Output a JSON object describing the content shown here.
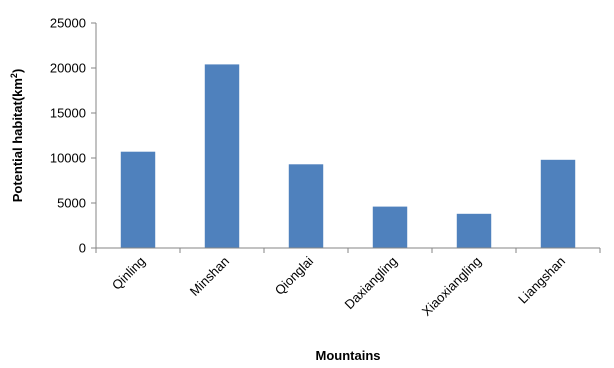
{
  "chart_data": {
    "type": "bar",
    "title": "",
    "xlabel": "Mountains",
    "ylabel_main": "Potential habitat(km",
    "ylabel_sup": "2",
    "ylabel_close": ")",
    "categories": [
      "Qinling",
      "Minshan",
      "Qionglai",
      "Daxiangling",
      "Xiaoxiangling",
      "Liangshan"
    ],
    "series": [
      {
        "values": [
          10700,
          20400,
          9300,
          4600,
          3800,
          9800
        ]
      }
    ],
    "ylim": [
      0,
      25000
    ],
    "yticks": [
      0,
      5000,
      10000,
      15000,
      20000,
      25000
    ],
    "grid": false,
    "legend": "none",
    "bar_color": "#4F81BD",
    "axis_color": "#868686"
  }
}
